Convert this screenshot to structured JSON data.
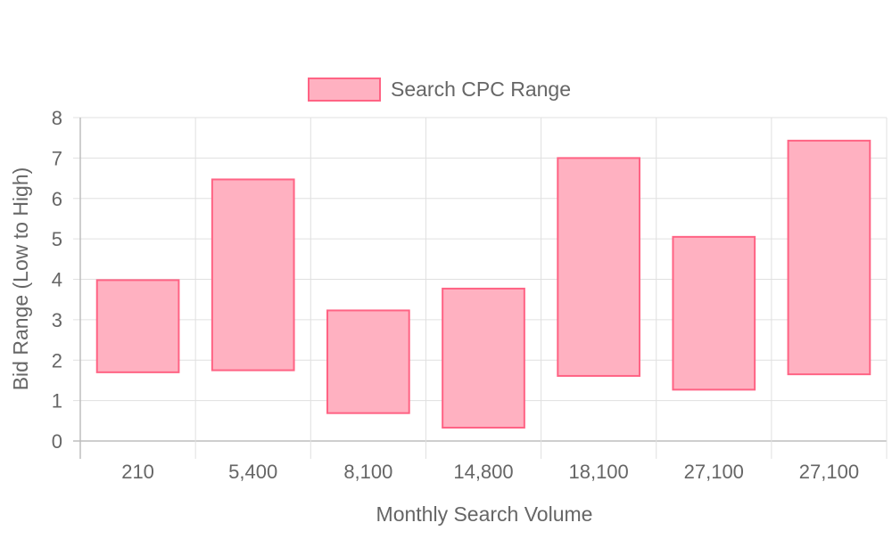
{
  "chart_data": {
    "type": "bar",
    "subtype": "floating-range",
    "title": "",
    "xlabel": "Monthly Search Volume",
    "ylabel": "Bid Range (Low to High)",
    "categories": [
      "210",
      "5,400",
      "8,100",
      "14,800",
      "18,100",
      "27,100",
      "27,100"
    ],
    "series": [
      {
        "name": "Search CPC Range",
        "ranges": [
          [
            1.7,
            3.98
          ],
          [
            1.75,
            6.47
          ],
          [
            0.69,
            3.23
          ],
          [
            0.33,
            3.77
          ],
          [
            1.61,
            7.0
          ],
          [
            1.27,
            5.05
          ],
          [
            1.65,
            7.43
          ]
        ],
        "fill": "#ffb1c1",
        "stroke": "#ff6384"
      }
    ],
    "ylim": [
      0,
      8
    ],
    "yticks": [
      "0",
      "1",
      "2",
      "3",
      "4",
      "5",
      "6",
      "7",
      "8"
    ],
    "grid": true,
    "legend": "top-center"
  },
  "colors": {
    "grid": "#e0e0e0",
    "axis": "#bdbdbd",
    "text": "#666666",
    "bar_fill": "#ffb1c1",
    "bar_stroke": "#ff6384"
  }
}
